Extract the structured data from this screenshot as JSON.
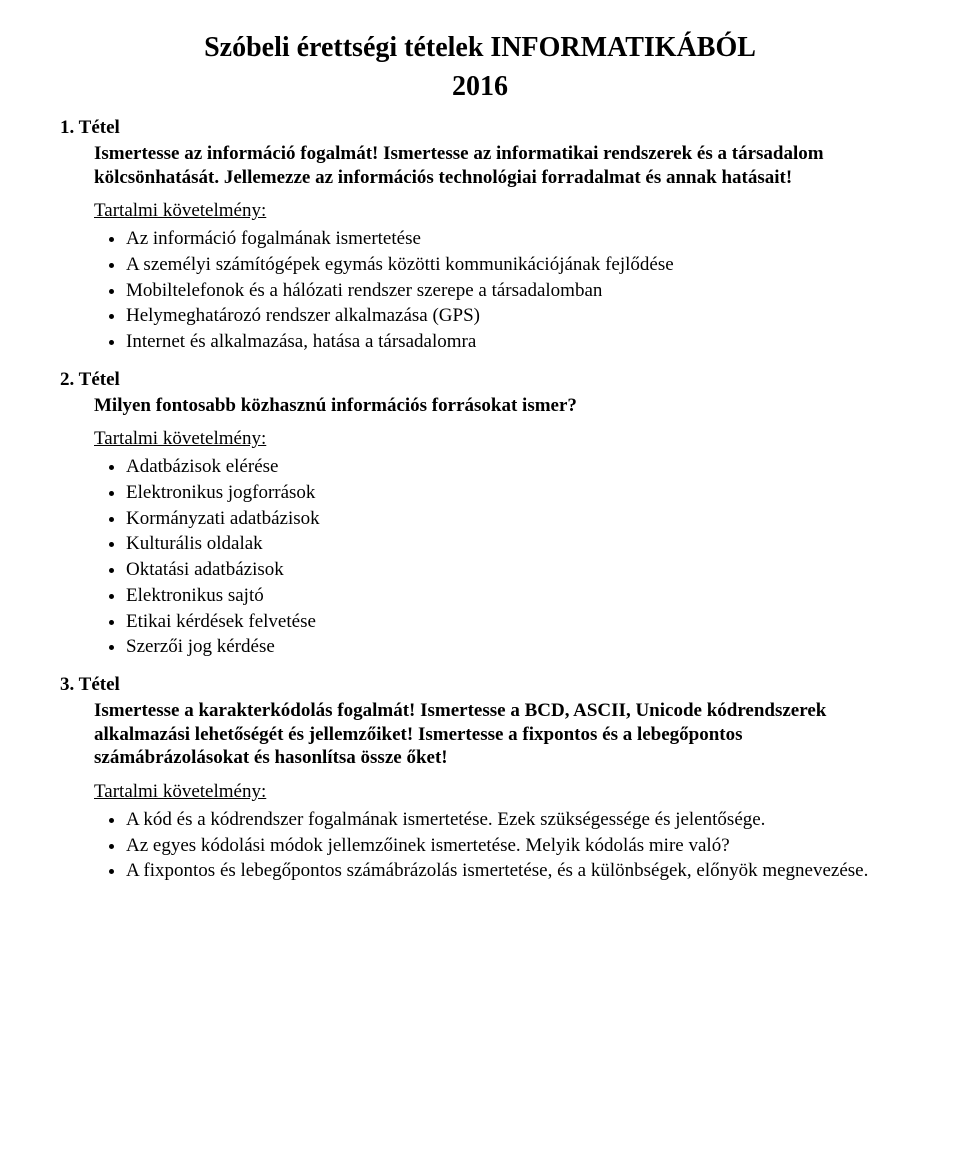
{
  "title": "Szóbeli érettségi tételek INFORMATIKÁBÓL",
  "year": "2016",
  "req_label": "Tartalmi követelmény:",
  "tetels": [
    {
      "num": "1. Tétel",
      "prompt": "Ismertesse az információ fogalmát! Ismertesse az informatikai rendszerek és a társadalom kölcsönhatását. Jellemezze az információs technológiai forradalmat és annak hatásait!",
      "items": [
        "Az információ fogalmának ismertetése",
        "A személyi számítógépek egymás közötti kommunikációjának fejlődése",
        "Mobiltelefonok és a hálózati rendszer szerepe a társadalomban",
        "Helymeghatározó rendszer alkalmazása (GPS)",
        "Internet és alkalmazása, hatása a társadalomra"
      ]
    },
    {
      "num": "2. Tétel",
      "prompt": "Milyen fontosabb közhasznú információs forrásokat ismer?",
      "items": [
        "Adatbázisok elérése",
        "Elektronikus jogforrások",
        "Kormányzati adatbázisok",
        "Kulturális oldalak",
        "Oktatási adatbázisok",
        "Elektronikus sajtó",
        "Etikai kérdések felvetése",
        "Szerzői jog kérdése"
      ]
    },
    {
      "num": "3. Tétel",
      "prompt": "Ismertesse a karakterkódolás fogalmát! Ismertesse a BCD, ASCII, Unicode kódrendszerek alkalmazási lehetőségét és jellemzőiket! Ismertesse a fixpontos és a lebegőpontos számábrázolásokat és hasonlítsa össze őket!",
      "items": [
        "A kód és a kódrendszer fogalmának ismertetése. Ezek szükségessége és jelentősége.",
        "Az egyes kódolási módok jellemzőinek ismertetése. Melyik kódolás mire való?",
        "A fixpontos és lebegőpontos számábrázolás ismertetése, és a különbségek, előnyök megnevezése."
      ]
    }
  ]
}
